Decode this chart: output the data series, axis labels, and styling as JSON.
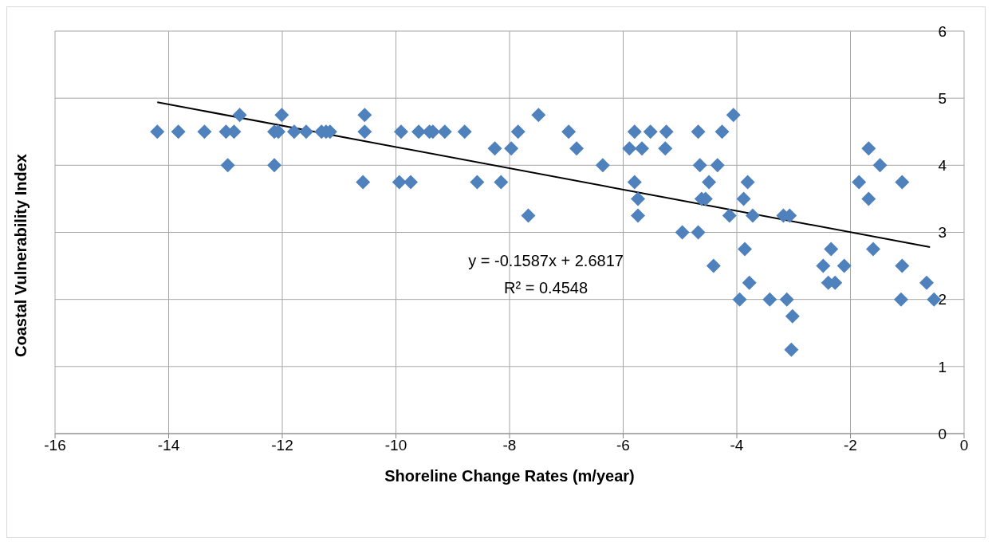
{
  "chart_data": {
    "type": "scatter",
    "xlabel": "Shoreline Change Rates (m/year)",
    "ylabel": "Coastal Vulnerability Index",
    "xlim": [
      -16,
      0
    ],
    "xticks": [
      -16,
      -14,
      -12,
      -10,
      -8,
      -6,
      -4,
      -2,
      0
    ],
    "ylim": [
      0,
      6
    ],
    "yticks": [
      0,
      1,
      2,
      3,
      4,
      5,
      6
    ],
    "grid": true,
    "legend": false,
    "annotations": [
      "y = -0.1587x + 2.6817",
      "R² = 0.4548"
    ],
    "series": [
      {
        "color": "#4f81bd",
        "marker": "diamond",
        "x": [
          -14.2,
          -13.83,
          -13.37,
          -12.99,
          -12.85,
          -12.14,
          -12.07,
          -11.79,
          -11.58,
          -11.31,
          -11.23,
          -11.16,
          -10.55,
          -9.91,
          -9.6,
          -9.41,
          -9.35,
          -9.14,
          -8.79,
          -7.85,
          -6.96,
          -5.8,
          -5.52,
          -5.24,
          -4.68,
          -4.26,
          -12.75,
          -12.01,
          -10.55,
          -7.49,
          -4.06,
          -8.26,
          -7.97,
          -6.82,
          -5.89,
          -5.67,
          -5.26,
          -1.68,
          -12.96,
          -12.14,
          -6.36,
          -4.65,
          -4.34,
          -1.48,
          -10.58,
          -9.94,
          -9.74,
          -8.57,
          -8.15,
          -5.8,
          -4.49,
          -3.81,
          -1.85,
          -1.09,
          -5.74,
          -4.62,
          -4.55,
          -3.88,
          -1.68,
          -7.67,
          -5.74,
          -4.13,
          -3.72,
          -3.18,
          -3.07,
          -4.96,
          -4.68,
          -3.86,
          -2.34,
          -1.6,
          -4.41,
          -2.48,
          -2.11,
          -1.09,
          -3.78,
          -2.39,
          -2.27,
          -0.66,
          -3.95,
          -3.42,
          -3.12,
          -1.11,
          -0.53,
          -3.02,
          -3.04
        ],
        "values": [
          4.5,
          4.5,
          4.5,
          4.5,
          4.5,
          4.5,
          4.5,
          4.5,
          4.5,
          4.5,
          4.5,
          4.5,
          4.5,
          4.5,
          4.5,
          4.5,
          4.5,
          4.5,
          4.5,
          4.5,
          4.5,
          4.5,
          4.5,
          4.5,
          4.5,
          4.5,
          4.75,
          4.75,
          4.75,
          4.75,
          4.75,
          4.25,
          4.25,
          4.25,
          4.25,
          4.25,
          4.25,
          4.25,
          4,
          4,
          4,
          4,
          4,
          4,
          3.75,
          3.75,
          3.75,
          3.75,
          3.75,
          3.75,
          3.75,
          3.75,
          3.75,
          3.75,
          3.5,
          3.5,
          3.5,
          3.5,
          3.5,
          3.25,
          3.25,
          3.25,
          3.25,
          3.25,
          3.25,
          3,
          3,
          2.75,
          2.75,
          2.75,
          2.5,
          2.5,
          2.5,
          2.5,
          2.25,
          2.25,
          2.25,
          2.25,
          2,
          2,
          2,
          2,
          2,
          1.75,
          1.25
        ]
      },
      {
        "type": "line",
        "marker": "none",
        "color": "#000000",
        "x": [
          -14.2,
          -0.6
        ],
        "values": [
          4.94,
          2.78
        ]
      }
    ]
  }
}
